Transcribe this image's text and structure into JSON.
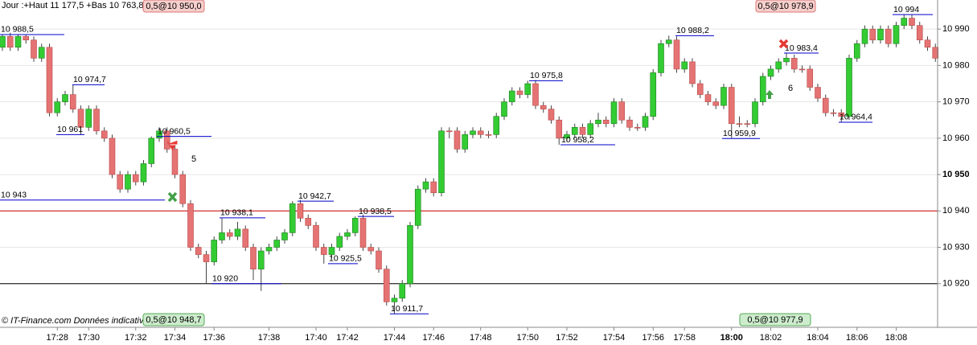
{
  "chart_data": {
    "type": "candlestick",
    "header": "Jour :+Haut 11 177,5 +Bas 10 763,8",
    "footer": "© IT-Finance.com  Données indicatives",
    "top_tags": [
      "0,5@10 950,0",
      "0,5@10 978,9"
    ],
    "bottom_tags": [
      "0,5@10 948,7",
      "0,5@10 977,9"
    ],
    "signals": [
      "5",
      "6"
    ],
    "up_color": "#33cc33",
    "down_color": "#e57373",
    "grid": true,
    "ylim": [
      10908,
      10998
    ],
    "yticks": [
      {
        "value": 10920,
        "label": "10 920"
      },
      {
        "value": 10930,
        "label": "10 930"
      },
      {
        "value": 10940,
        "label": "10 940"
      },
      {
        "value": 10950,
        "label": "10 950",
        "bold": true
      },
      {
        "value": 10960,
        "label": "10 960"
      },
      {
        "value": 10970,
        "label": "10 970"
      },
      {
        "value": 10980,
        "label": "10 980"
      },
      {
        "value": 10990,
        "label": "10 990"
      }
    ],
    "reference_lines": [
      {
        "value": 10940,
        "color": "#cc0000"
      },
      {
        "value": 10920,
        "color": "#000000"
      }
    ],
    "annotations": [
      {
        "value": 10988.5,
        "label": "10 988,5"
      },
      {
        "value": 10974.7,
        "label": "10 974,7"
      },
      {
        "value": 10961,
        "label": "10 961"
      },
      {
        "value": 10960.5,
        "label": "10 960,5"
      },
      {
        "value": 10943,
        "label": "10 943"
      },
      {
        "value": 10938.1,
        "label": "10 938,1"
      },
      {
        "value": 10942.7,
        "label": "10 942,7"
      },
      {
        "value": 10938.5,
        "label": "10 938,5"
      },
      {
        "value": 10925.5,
        "label": "10 925,5"
      },
      {
        "value": 10920,
        "label": "10 920"
      },
      {
        "value": 10911.7,
        "label": "10 911,7"
      },
      {
        "value": 10975.8,
        "label": "10 975,8"
      },
      {
        "value": 10958.2,
        "label": "10 958,2"
      },
      {
        "value": 10988.2,
        "label": "10 988,2"
      },
      {
        "value": 10959.9,
        "label": "10 959,9"
      },
      {
        "value": 10983.4,
        "label": "10 983,4"
      },
      {
        "value": 10964.4,
        "label": "10 964,4"
      },
      {
        "value": 10994,
        "label": "10 994"
      }
    ],
    "categories": [
      null,
      null,
      null,
      null,
      null,
      null,
      null,
      "17:28",
      null,
      null,
      null,
      "17:30",
      null,
      null,
      null,
      null,
      null,
      "17:32",
      null,
      null,
      null,
      null,
      "17:34",
      null,
      null,
      null,
      null,
      "17:36",
      null,
      null,
      null,
      null,
      null,
      null,
      "17:38",
      null,
      null,
      null,
      null,
      null,
      "17:40",
      null,
      null,
      null,
      "17:42",
      null,
      null,
      null,
      null,
      null,
      "17:44",
      null,
      null,
      null,
      null,
      "17:46",
      null,
      null,
      null,
      null,
      null,
      "17:48",
      null,
      null,
      null,
      null,
      null,
      "17:50",
      null,
      null,
      null,
      null,
      "17:52",
      null,
      null,
      null,
      null,
      null,
      "17:54",
      null,
      null,
      null,
      null,
      "17:56",
      null,
      null,
      null,
      "17:58",
      null,
      null,
      null,
      null,
      null,
      "18:00",
      null,
      null,
      null,
      null,
      "18:02",
      null,
      null,
      null,
      null,
      null,
      "18:04",
      null,
      null,
      null,
      null,
      "18:06",
      null,
      null,
      null,
      null,
      "18:08",
      null,
      null,
      null,
      null,
      null
    ],
    "bold_category": "18:00",
    "open": [
      10985,
      10988,
      10985,
      10988,
      10987,
      10982,
      10985,
      10967,
      10970,
      10972,
      10968,
      10963,
      10968,
      10962,
      10960,
      10950,
      10946,
      10950,
      10948,
      10953,
      10960,
      10962,
      10957,
      10950,
      10942,
      10930,
      10928,
      10926,
      10932,
      10934,
      10933,
      10935,
      10930,
      10924,
      10929,
      10930,
      10932,
      10934,
      10942,
      10938,
      10936,
      10930,
      10928,
      10930,
      10933,
      10934,
      10938,
      10930,
      10929,
      10924,
      10915,
      10916,
      10920,
      10936,
      10946,
      10948,
      10945,
      10962,
      10962,
      10957,
      10961,
      10962,
      10961,
      10961,
      10966,
      10970,
      10973,
      10972,
      10975,
      10969,
      10968,
      10965,
      10960,
      10961,
      10963,
      10961,
      10964,
      10965,
      10964,
      10970,
      10965,
      10963,
      10963,
      10966,
      10978,
      10986,
      10987,
      10979,
      10981,
      10975,
      10972,
      10970,
      10969,
      10974,
      10964,
      10964,
      10964,
      10970,
      10977,
      10979,
      10981,
      10982,
      10979,
      10979,
      10974,
      10971,
      10967,
      10967,
      10966,
      10982,
      10986,
      10990,
      10987,
      10990,
      10986,
      10991,
      10993,
      10991,
      10987,
      10985
    ],
    "high": [
      10988.5,
      10989,
      10988.5,
      10988.5,
      10988,
      10986,
      10986,
      10971,
      10973,
      10974.7,
      10969,
      10969,
      10969,
      10963,
      10961,
      10951,
      10951,
      10951,
      10954,
      10960.5,
      10963,
      10963,
      10958,
      10951,
      10943,
      10931,
      10929,
      10933,
      10938.1,
      10935,
      10937,
      10936,
      10931,
      10930,
      10931,
      10933,
      10935,
      10942.7,
      10943,
      10939,
      10937,
      10931,
      10931,
      10934,
      10935,
      10938.5,
      10939,
      10931,
      10930,
      10925,
      10917,
      10921,
      10937,
      10947,
      10949,
      10949,
      10963,
      10963,
      10963,
      10962,
      10963,
      10963,
      10962,
      10967,
      10971,
      10974,
      10974,
      10975.8,
      10976,
      10970,
      10969,
      10966,
      10962,
      10964,
      10964,
      10965,
      10967,
      10966,
      10971,
      10971,
      10966,
      10964,
      10967,
      10979,
      10987,
      10988.2,
      10988,
      10982,
      10982,
      10976,
      10973,
      10971,
      10975,
      10975,
      10966,
      10965,
      10971,
      10978,
      10980,
      10982,
      10983.4,
      10983,
      10980,
      10980,
      10975,
      10972,
      10968,
      10968,
      10983,
      10987,
      10991,
      10991,
      10991,
      10991,
      10992,
      10994,
      10994,
      10992,
      10988,
      10986
    ],
    "low": [
      10984,
      10984,
      10984,
      10986,
      10981,
      10981,
      10966,
      10966,
      10969,
      10967,
      10961,
      10962,
      10961,
      10959,
      10949,
      10945,
      10945,
      10947,
      10947,
      10952,
      10959,
      10956,
      10949,
      10941,
      10929,
      10927,
      10920,
      10925,
      10931,
      10932,
      10932,
      10929,
      10921,
      10918,
      10928,
      10929,
      10931,
      10933,
      10937,
      10935,
      10929,
      10925.5,
      10927,
      10929,
      10932,
      10933,
      10929,
      10928,
      10923,
      10914,
      10911.7,
      10915,
      10919,
      10935,
      10945,
      10944,
      10944,
      10960,
      10956,
      10956,
      10960,
      10960,
      10960,
      10960,
      10965,
      10969,
      10971,
      10971,
      10968,
      10967,
      10964,
      10958.2,
      10959,
      10960,
      10960,
      10960,
      10963,
      10963,
      10963,
      10964,
      10962,
      10962,
      10962,
      10965,
      10977,
      10985,
      10978,
      10978,
      10974,
      10971,
      10969,
      10968,
      10968,
      10959.9,
      10963,
      10963,
      10963,
      10969,
      10976,
      10978,
      10980,
      10978,
      10978,
      10973,
      10970,
      10966,
      10966,
      10964.4,
      10965,
      10981,
      10985,
      10986,
      10986,
      10985,
      10985,
      10990,
      10990,
      10986,
      10984,
      10981
    ],
    "close": [
      10988,
      10985,
      10988,
      10987,
      10982,
      10985,
      10967,
      10970,
      10972,
      10968,
      10963,
      10968,
      10962,
      10960,
      10950,
      10946,
      10950,
      10948,
      10953,
      10960,
      10962,
      10957,
      10950,
      10942,
      10930,
      10928,
      10926,
      10932,
      10934,
      10933,
      10935,
      10930,
      10924,
      10929,
      10930,
      10932,
      10934,
      10942,
      10938,
      10936,
      10930,
      10928,
      10930,
      10933,
      10934,
      10938,
      10930,
      10929,
      10924,
      10915,
      10916,
      10920,
      10936,
      10946,
      10948,
      10945,
      10962,
      10962,
      10957,
      10961,
      10962,
      10961,
      10961,
      10966,
      10970,
      10973,
      10972,
      10975,
      10969,
      10968,
      10965,
      10960,
      10961,
      10963,
      10961,
      10964,
      10965,
      10964,
      10970,
      10965,
      10963,
      10963,
      10966,
      10978,
      10986,
      10987,
      10979,
      10981,
      10975,
      10972,
      10970,
      10969,
      10974,
      10964,
      10964,
      10964,
      10970,
      10977,
      10979,
      10981,
      10982,
      10979,
      10979,
      10974,
      10971,
      10967,
      10967,
      10966,
      10982,
      10986,
      10990,
      10987,
      10990,
      10986,
      10991,
      10993,
      10991,
      10987,
      10985,
      10982
    ]
  }
}
